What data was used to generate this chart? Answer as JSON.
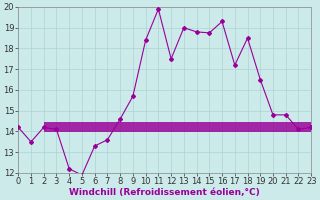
{
  "title": "",
  "xlabel": "Windchill (Refroidissement éolien,°C)",
  "ylabel": "",
  "background_color": "#cceaea",
  "line_color": "#990099",
  "hours": [
    0,
    1,
    2,
    3,
    4,
    5,
    6,
    7,
    8,
    9,
    10,
    11,
    12,
    13,
    14,
    15,
    16,
    17,
    18,
    19,
    20,
    21,
    22,
    23
  ],
  "windchill": [
    14.2,
    13.5,
    14.2,
    14.1,
    12.2,
    11.9,
    13.3,
    13.6,
    14.6,
    15.7,
    18.4,
    19.9,
    17.5,
    19.0,
    18.8,
    18.75,
    19.3,
    17.2,
    18.5,
    16.5,
    14.8,
    14.8,
    14.1,
    14.2
  ],
  "hlines_y": [
    14.0,
    14.1,
    14.2,
    14.3,
    14.4
  ],
  "ylim": [
    12,
    20
  ],
  "xlim": [
    0,
    23
  ],
  "yticks": [
    12,
    13,
    14,
    15,
    16,
    17,
    18,
    19,
    20
  ],
  "xticks": [
    0,
    1,
    2,
    3,
    4,
    5,
    6,
    7,
    8,
    9,
    10,
    11,
    12,
    13,
    14,
    15,
    16,
    17,
    18,
    19,
    20,
    21,
    22,
    23
  ],
  "grid_color": "#aad4d4",
  "marker": "D",
  "markersize": 2.0,
  "linewidth": 0.8,
  "hline_xstart": 2,
  "hline_xend": 23,
  "hline_color": "#990099",
  "hline_linewidth": 1.2,
  "tick_fontsize": 6,
  "xlabel_fontsize": 6.5,
  "xlabel_bold": true
}
